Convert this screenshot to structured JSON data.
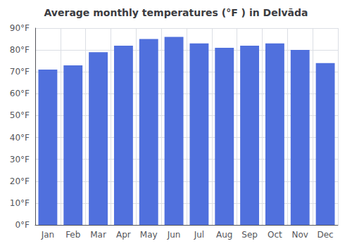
{
  "chart_data": {
    "type": "bar",
    "title": "Average monthly temperatures (°F ) in Delvāda",
    "categories": [
      "Jan",
      "Feb",
      "Mar",
      "Apr",
      "May",
      "Jun",
      "Jul",
      "Aug",
      "Sep",
      "Oct",
      "Nov",
      "Dec"
    ],
    "values": [
      71,
      73,
      79,
      82,
      85,
      86,
      83,
      81,
      82,
      83,
      80,
      74
    ],
    "ylim": [
      0,
      90
    ],
    "yticks": [
      {
        "value": 0,
        "label": "0°F"
      },
      {
        "value": 10,
        "label": "10°F"
      },
      {
        "value": 20,
        "label": "20°F"
      },
      {
        "value": 30,
        "label": "30°F"
      },
      {
        "value": 40,
        "label": "40°F"
      },
      {
        "value": 50,
        "label": "50°F"
      },
      {
        "value": 60,
        "label": "60°F"
      },
      {
        "value": 70,
        "label": "70°F"
      },
      {
        "value": 80,
        "label": "80°F"
      },
      {
        "value": 90,
        "label": "90°F"
      }
    ],
    "grid": true
  }
}
